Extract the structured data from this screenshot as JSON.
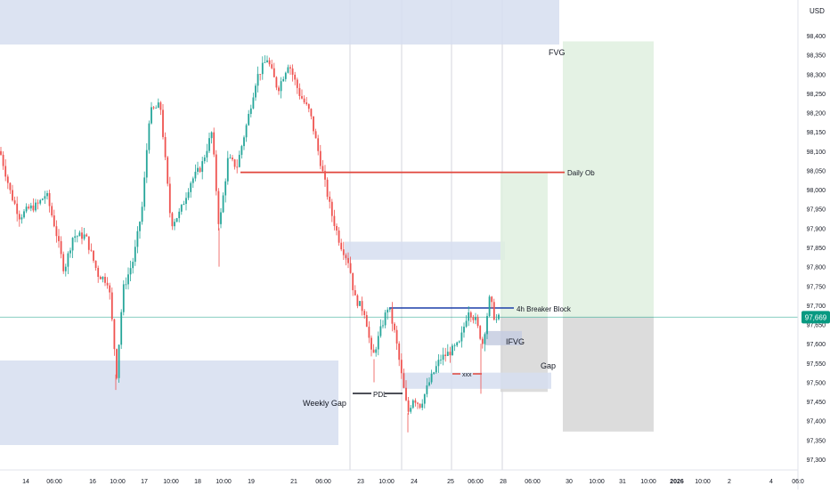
{
  "currency": "USD",
  "chart_data": {
    "type": "candlestick",
    "symbol_currency": "USD",
    "ylim": [
      97300,
      98420
    ],
    "y_ticks": [
      "98,400",
      "98,350",
      "98,300",
      "98,250",
      "98,200",
      "98,150",
      "98,100",
      "98,050",
      "98,000",
      "97,950",
      "97,900",
      "97,850",
      "97,800",
      "97,750",
      "97,700",
      "97,650",
      "97,600",
      "97,550",
      "97,500",
      "97,450",
      "97,400",
      "97,350",
      "97,300"
    ],
    "x_ticks": [
      "14",
      "06:00",
      "16",
      "10:00",
      "17",
      "10:00",
      "18",
      "10:00",
      "19",
      "21",
      "06:00",
      "23",
      "10:00",
      "24",
      "25",
      "06:00",
      "28",
      "06:00",
      "30",
      "10:00",
      "31",
      "10:00",
      "2026",
      "10:00",
      "2",
      "4",
      "06:0"
    ],
    "current_price_label": "97,669",
    "current_price": 97669,
    "annotations": {
      "fvg": "FVG",
      "daily_ob": "Daily Ob",
      "breaker": "4h Breaker Block",
      "ifvg": "IFVG",
      "gap": "Gap",
      "xxx": "xxx",
      "pdl": "PDL",
      "weekly_gap": "Weekly Gap"
    },
    "levels": {
      "daily_ob": 98045,
      "breaker": 97693,
      "pdl": 97495
    },
    "colors": {
      "up": "#26a69a",
      "down": "#ef5350",
      "zone": "#d6def0",
      "long_zone": "#dff0df",
      "risk_zone": "#d6d6d6",
      "price_line": "#089981"
    }
  }
}
